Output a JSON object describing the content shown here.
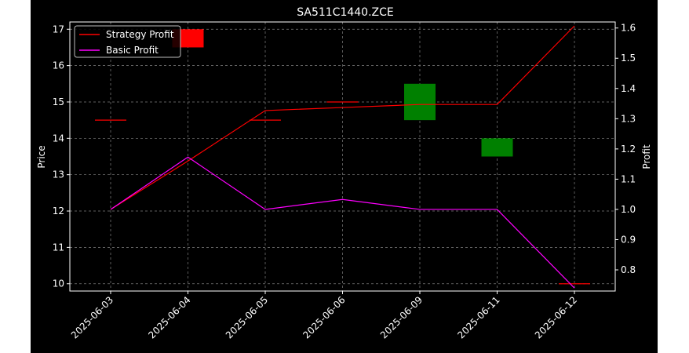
{
  "chart_data": {
    "type": "candlestick-with-lines",
    "title": "SA511C1440.ZCE",
    "x_categories": [
      "2025-06-03",
      "2025-06-04",
      "2025-06-05",
      "2025-06-06",
      "2025-06-09",
      "2025-06-11",
      "2025-06-12"
    ],
    "left_axis": {
      "label": "Price",
      "ylim": [
        9.8,
        17.2
      ],
      "ticks": [
        10,
        11,
        12,
        13,
        14,
        15,
        16,
        17
      ]
    },
    "right_axis": {
      "label": "Profit",
      "ylim": [
        0.73,
        1.62
      ],
      "ticks": [
        0.8,
        0.9,
        1.0,
        1.1,
        1.2,
        1.3,
        1.4,
        1.5,
        1.6
      ],
      "tick_labels": [
        "0.8",
        "0.9",
        "1.0",
        "1.1",
        "1.2",
        "1.3",
        "1.4",
        "1.5",
        "1.6"
      ]
    },
    "candles": [
      {
        "x": "2025-06-03",
        "open": 14.5,
        "close": 14.5,
        "color": "#ff0000"
      },
      {
        "x": "2025-06-04",
        "open": 17.0,
        "close": 16.5,
        "color": "#ff0000"
      },
      {
        "x": "2025-06-05",
        "open": 14.5,
        "close": 14.5,
        "color": "#ff0000"
      },
      {
        "x": "2025-06-06",
        "open": 15.0,
        "close": 15.0,
        "color": "#ff0000"
      },
      {
        "x": "2025-06-09",
        "open": 14.5,
        "close": 15.5,
        "color": "#008000"
      },
      {
        "x": "2025-06-11",
        "open": 13.5,
        "close": 14.0,
        "color": "#008000"
      },
      {
        "x": "2025-06-12",
        "open": 10.0,
        "close": 10.0,
        "color": "#ff0000"
      }
    ],
    "series": [
      {
        "name": "Strategy Profit",
        "color": "#ff0000",
        "axis": "right",
        "values": [
          1.0,
          1.16,
          1.327,
          1.337,
          1.347,
          1.347,
          1.607
        ]
      },
      {
        "name": "Basic Profit",
        "color": "#ff00ff",
        "axis": "right",
        "values": [
          1.0,
          1.173,
          1.0,
          1.033,
          1.0,
          1.0,
          0.74
        ]
      }
    ],
    "grid": true,
    "legend_position": "top-left",
    "colors": {
      "background": "#000000",
      "foreground": "#ffffff",
      "grid": "#808080"
    }
  }
}
